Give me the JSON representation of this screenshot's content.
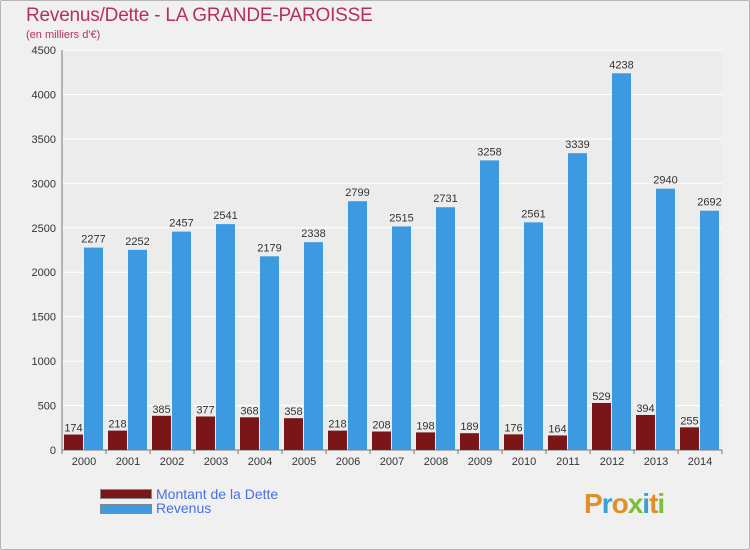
{
  "title": "Revenus/Dette - LA GRANDE-PAROISSE",
  "subtitle": "(en milliers d'€)",
  "colors": {
    "debt": "#7a1518",
    "revenue": "#3d9ae0",
    "title": "#b5305a",
    "legend_text": "#4a6fe0"
  },
  "logo_text": "Proxiti",
  "chart_data": {
    "type": "bar",
    "categories": [
      "2000",
      "2001",
      "2002",
      "2003",
      "2004",
      "2005",
      "2006",
      "2007",
      "2008",
      "2009",
      "2010",
      "2011",
      "2012",
      "2013",
      "2014"
    ],
    "series": [
      {
        "name": "Montant de la Dette",
        "values": [
          174,
          218,
          385,
          377,
          368,
          358,
          218,
          208,
          198,
          189,
          176,
          164,
          529,
          394,
          255
        ],
        "color": "#7a1518"
      },
      {
        "name": "Revenus",
        "values": [
          2277,
          2252,
          2457,
          2541,
          2179,
          2338,
          2799,
          2515,
          2731,
          3258,
          2561,
          3339,
          4238,
          2940,
          2692
        ],
        "color": "#3d9ae0"
      }
    ],
    "yticks": [
      0,
      500,
      1000,
      1500,
      2000,
      2500,
      3000,
      3500,
      4000,
      4500
    ],
    "ylim": [
      0,
      4500
    ],
    "grid": true,
    "legend": "bottom-left"
  }
}
